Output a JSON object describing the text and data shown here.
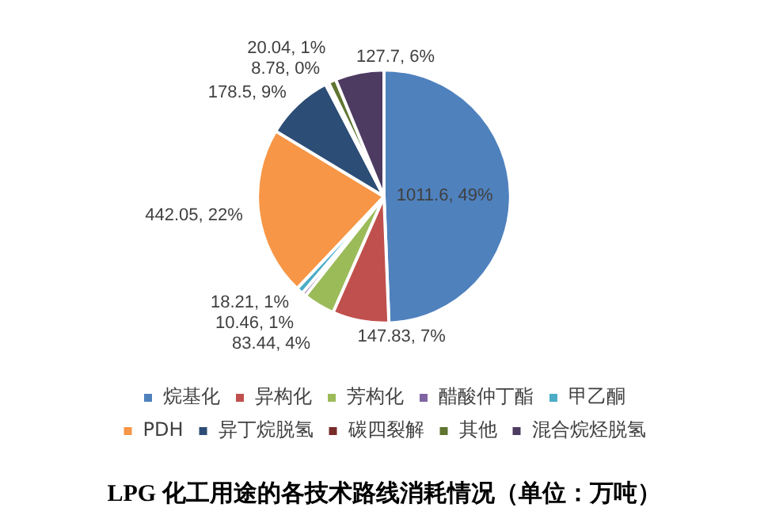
{
  "chart_data": {
    "type": "pie",
    "title": "LPG 化工用途的各技术路线消耗情况（单位：万吨）",
    "categories": [
      "烷基化",
      "异构化",
      "芳构化",
      "醋酸仲丁酯",
      "甲乙酮",
      "PDH",
      "异丁烷脱氢",
      "碳四裂解",
      "其他",
      "混合烷烃脱氢"
    ],
    "values": [
      1011.6,
      147.83,
      83.44,
      10.46,
      18.21,
      442.05,
      178.5,
      8.78,
      20.04,
      127.7
    ],
    "colors": [
      "#4f81bd",
      "#c0504d",
      "#9bbb59",
      "#8064a2",
      "#4bacc6",
      "#f79646",
      "#2c4d75",
      "#772c2a",
      "#5f7530",
      "#4d3b62"
    ],
    "value_labels": [
      "1011.6, 49%",
      "147.83, 7%",
      "83.44, 4%",
      "10.46, 1%",
      "18.21, 1%",
      "442.05, 22%",
      "178.5, 9%",
      "8.78, 0%",
      "20.04, 1%",
      "127.7, 6%"
    ],
    "legend": "bottom"
  }
}
